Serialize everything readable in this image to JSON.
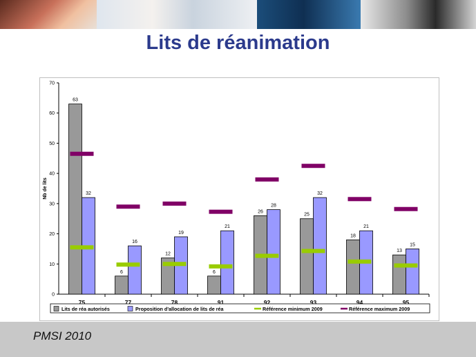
{
  "slide": {
    "title": "Lits de réanimation",
    "footer": "PMSI 2010"
  },
  "chart_data": {
    "type": "bar",
    "title": "",
    "xlabel": "",
    "ylabel": "Nb de lits",
    "ylim": [
      0,
      70
    ],
    "yticks": [
      0,
      10,
      20,
      30,
      40,
      50,
      60,
      70
    ],
    "categories": [
      "75",
      "77",
      "78",
      "91",
      "92",
      "93",
      "94",
      "95"
    ],
    "series": [
      {
        "name": "Lits de réa autorisés",
        "kind": "bar",
        "color": "#999999",
        "values": [
          63,
          6,
          12,
          6,
          26,
          25,
          18,
          13
        ]
      },
      {
        "name": "Proposition d'allocation de lits de réa",
        "kind": "bar",
        "color": "#9999ff",
        "values": [
          32,
          16,
          19,
          21,
          28,
          32,
          21,
          15
        ]
      },
      {
        "name": "Référence minimum 2009",
        "kind": "marker",
        "color": "#99cc00",
        "values": [
          15.5,
          9.8,
          10,
          9.2,
          12.7,
          14.3,
          10.8,
          9.5
        ]
      },
      {
        "name": "Référence maximum 2009",
        "kind": "marker",
        "color": "#800066",
        "values": [
          46.5,
          29,
          30,
          27.3,
          38,
          42.5,
          31.5,
          28.2
        ]
      }
    ],
    "grid": false,
    "legend": "bottom"
  }
}
